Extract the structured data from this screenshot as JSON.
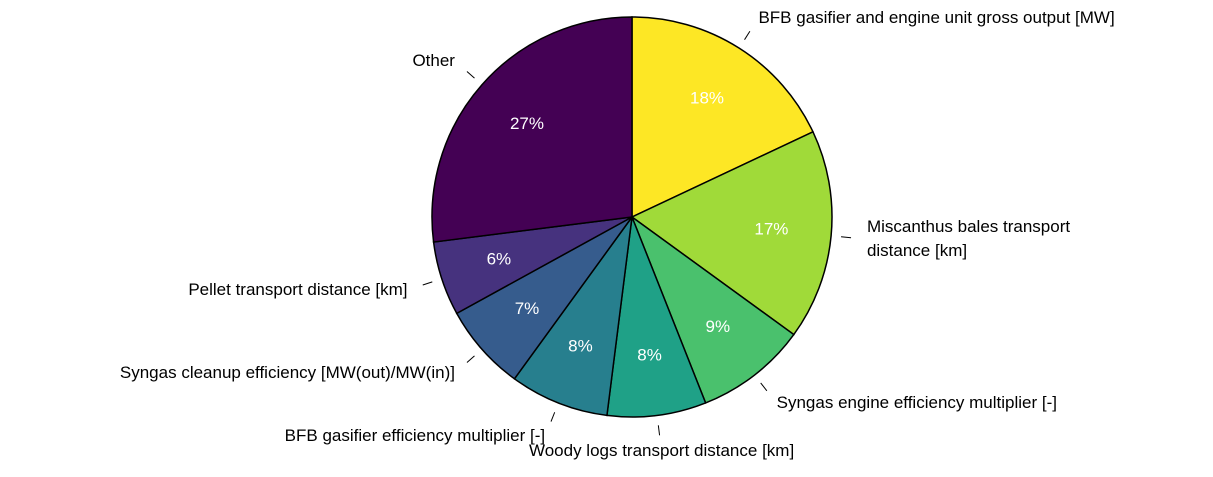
{
  "chart_data": {
    "type": "pie",
    "categories": [
      "BFB gasifier and engine unit gross output [MW]",
      "Miscanthus bales transport\ndistance [km]",
      "Syngas engine efficiency multiplier [-]",
      "Woody logs transport distance [km]",
      "BFB gasifier efficiency multiplier [-]",
      "Syngas cleanup efficiency [MW(out)/MW(in)]",
      "Pellet transport distance [km]",
      "Other"
    ],
    "values": [
      18,
      17,
      9,
      8,
      8,
      7,
      6,
      27
    ],
    "value_labels": [
      "18%",
      "17%",
      "9%",
      "8%",
      "8%",
      "7%",
      "6%",
      "27%"
    ],
    "colors": [
      "#fde725",
      "#a0da39",
      "#4ac16d",
      "#1fa187",
      "#277f8e",
      "#365c8d",
      "#46327e",
      "#440154"
    ]
  }
}
